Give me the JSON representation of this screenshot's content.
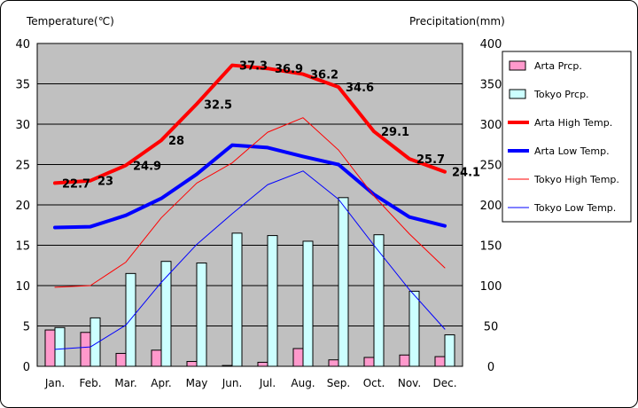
{
  "chart_data": {
    "type": "bar+line",
    "title": "",
    "ylabel_left": "Temperature(℃)",
    "ylabel_right": "Precipitation(mm)",
    "ylim_left": [
      0,
      40
    ],
    "yticks_left": [
      0,
      5,
      10,
      15,
      20,
      25,
      30,
      35,
      40
    ],
    "ylim_right": [
      0,
      400
    ],
    "yticks_right": [
      0,
      50,
      100,
      150,
      200,
      250,
      300,
      350,
      400
    ],
    "categories": [
      "Jan.",
      "Feb.",
      "Mar.",
      "Apr.",
      "May",
      "Jun.",
      "Jul.",
      "Aug.",
      "Sep.",
      "Oct.",
      "Nov.",
      "Dec."
    ],
    "grid": true,
    "legend_position": "right",
    "bars": [
      {
        "name": "Arta Prcp.",
        "color": "#ff99cc",
        "values": [
          45,
          42,
          16,
          20,
          6,
          1,
          5,
          22,
          8,
          11,
          14,
          12
        ]
      },
      {
        "name": "Tokyo Prcp.",
        "color": "#ccffff",
        "values": [
          48,
          60,
          115,
          130,
          128,
          165,
          162,
          155,
          209,
          163,
          93,
          39
        ]
      }
    ],
    "lines": [
      {
        "name": "Arta High Temp.",
        "color": "#ff0000",
        "width": 4,
        "values": [
          22.7,
          23,
          24.9,
          28,
          32.5,
          37.3,
          36.9,
          36.2,
          34.6,
          29.1,
          25.7,
          24.1
        ],
        "data_labels": [
          "22.7",
          "23",
          "24.9",
          "28",
          "32.5",
          "37.3",
          "36.9",
          "36.2",
          "34.6",
          "29.1",
          "25.7",
          "24.1"
        ]
      },
      {
        "name": "Arta Low Temp.",
        "color": "#0000ff",
        "width": 4,
        "values": [
          17.2,
          17.3,
          18.7,
          20.8,
          23.8,
          27.4,
          27.1,
          26.0,
          25.0,
          21.3,
          18.5,
          17.4
        ]
      },
      {
        "name": "Tokyo High Temp.",
        "color": "#ff0000",
        "width": 1,
        "values": [
          9.8,
          10.0,
          12.9,
          18.4,
          22.7,
          25.2,
          29.0,
          30.8,
          26.8,
          21.1,
          16.4,
          12.2
        ]
      },
      {
        "name": "Tokyo Low Temp.",
        "color": "#0000ff",
        "width": 1,
        "values": [
          2.1,
          2.4,
          5.1,
          10.4,
          15.1,
          18.9,
          22.5,
          24.2,
          20.7,
          15.0,
          9.5,
          4.6
        ]
      }
    ]
  }
}
